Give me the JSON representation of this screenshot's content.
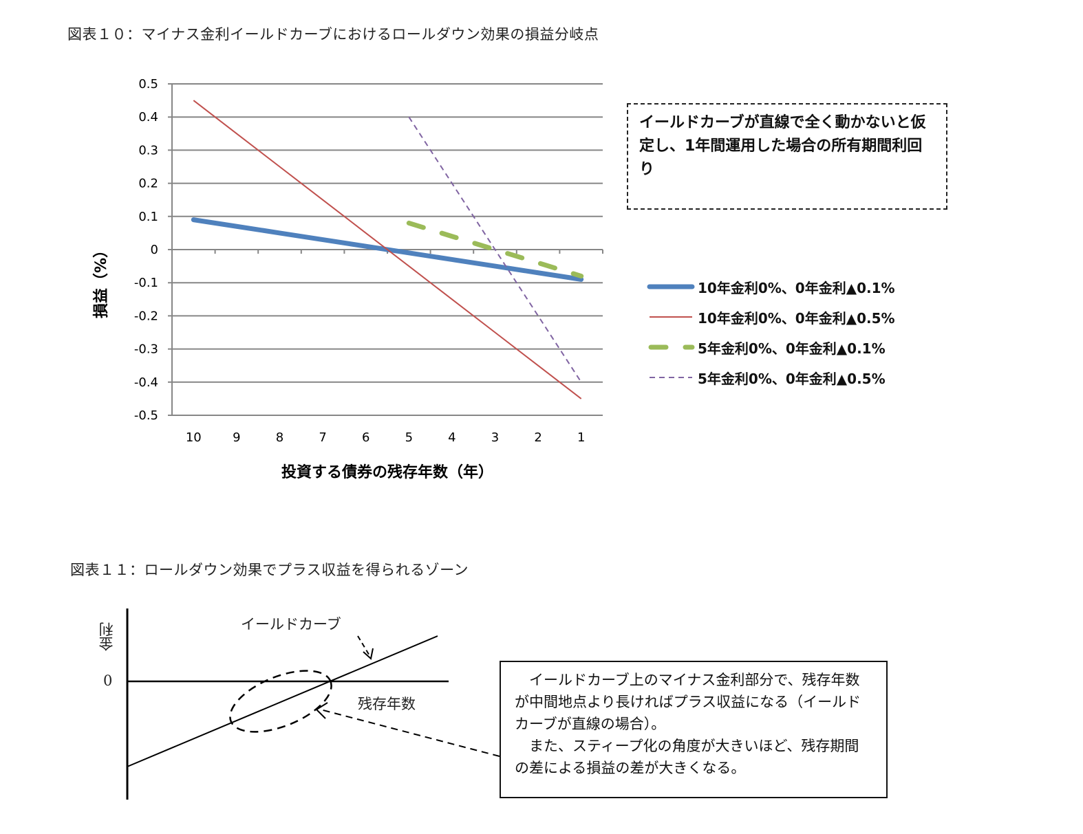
{
  "figure10": {
    "title": "図表１０：マイナス金利イールドカーブにおけるロールダウン効果の損益分岐点",
    "note": "イールドカーブが直線で全く動かないと仮定し、1年間運用した場合の所有期間利回り",
    "legend": [
      "10年金利0%、0年金利▲0.1%",
      "10年金利0%、0年金利▲0.5%",
      "5年金利0%、0年金利▲0.1%",
      "5年金利0%、0年金利▲0.5%"
    ]
  },
  "figure11": {
    "title": "図表１１：ロールダウン効果でプラス収益を得られるゾーン",
    "y_axis_label": "金利",
    "zero_label": "0",
    "curve_label": "イールドカーブ",
    "x_axis_label": "残存年数",
    "explanation": [
      "イールドカーブ上のマイナス金利部分で、残存年数が中間地点より長ければプラス収益になる（イールドカーブが直線の場合）。",
      "また、スティープ化の角度が大きいほど、残存期間の差による損益の差が大きくなる。"
    ]
  },
  "chart_data": [
    {
      "type": "line",
      "title": "図表１０：マイナス金利イールドカーブにおけるロールダウン効果の損益分岐点",
      "xlabel": "投資する債券の残存年数（年）",
      "ylabel": "損益（%）",
      "ylim": [
        -0.5,
        0.5
      ],
      "yticks": [
        "0.5",
        "0.4",
        "0.3",
        "0.2",
        "0.1",
        "0",
        "-0.1",
        "-0.2",
        "-0.3",
        "-0.4",
        "-0.5"
      ],
      "categories": [
        "10",
        "9",
        "8",
        "7",
        "6",
        "5",
        "4",
        "3",
        "2",
        "1"
      ],
      "grid": true,
      "legend_position": "right",
      "series": [
        {
          "name": "10年金利0%、0年金利▲0.1%",
          "color": "#4F81BD",
          "style": "solid-thick",
          "values": [
            0.09,
            0.07,
            0.05,
            0.03,
            0.01,
            -0.01,
            -0.03,
            -0.05,
            -0.07,
            -0.09
          ]
        },
        {
          "name": "10年金利0%、0年金利▲0.5%",
          "color": "#C0504D",
          "style": "solid-thin",
          "values": [
            0.45,
            0.35,
            0.25,
            0.15,
            0.05,
            -0.05,
            -0.15,
            -0.25,
            -0.35,
            -0.45
          ]
        },
        {
          "name": "5年金利0%、0年金利▲0.1%",
          "color": "#9BBB59",
          "style": "dashed-thick",
          "values": [
            null,
            null,
            null,
            null,
            null,
            0.08,
            0.04,
            0.0,
            -0.04,
            -0.08
          ]
        },
        {
          "name": "5年金利0%、0年金利▲0.5%",
          "color": "#8064A2",
          "style": "dashed-thin",
          "values": [
            null,
            null,
            null,
            null,
            null,
            0.4,
            0.2,
            0.0,
            -0.2,
            -0.4
          ]
        }
      ],
      "annotations": [
        "イールドカーブが直線で全く動かないと仮定し、1年間運用した場合の所有期間利回り"
      ]
    }
  ]
}
